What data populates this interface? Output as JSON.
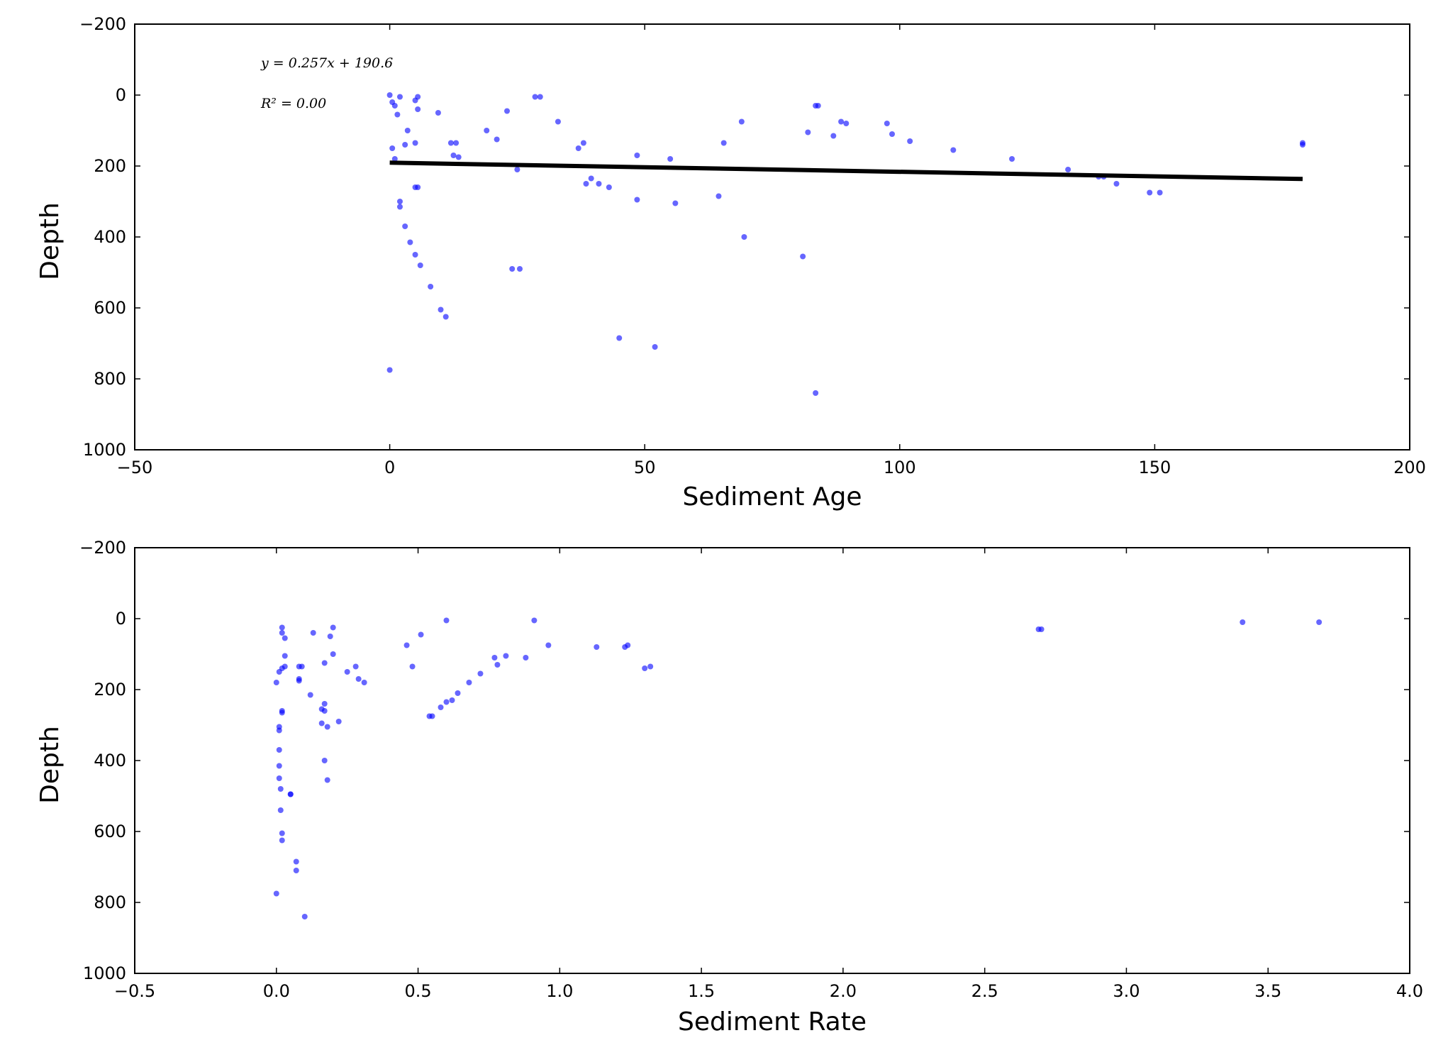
{
  "colors": {
    "point": "#0000ff",
    "point_opacity": 0.6,
    "fit_line": "#000000",
    "axis": "#000000"
  },
  "chart_data": [
    {
      "type": "scatter",
      "xlabel": "Sediment Age",
      "ylabel": "Depth",
      "xlim": [
        -50,
        200
      ],
      "ylim": [
        1000,
        -200
      ],
      "y_inverted": true,
      "x_ticks": [
        "−50",
        "0",
        "50",
        "100",
        "150",
        "200"
      ],
      "y_ticks": [
        "−200",
        "0",
        "200",
        "400",
        "600",
        "800",
        "1000"
      ],
      "annotations": {
        "equation": "y = 0.257x + 190.6",
        "r_squared": "R² = 0.00"
      },
      "fit_line": {
        "slope": 0.257,
        "intercept": 190.6,
        "x_range": [
          0,
          179
        ]
      },
      "points": [
        [
          0,
          0
        ],
        [
          0.5,
          20
        ],
        [
          1,
          30
        ],
        [
          2,
          5
        ],
        [
          1.5,
          55
        ],
        [
          5,
          15
        ],
        [
          5.5,
          5
        ],
        [
          5.5,
          40
        ],
        [
          9.5,
          50
        ],
        [
          0.5,
          150
        ],
        [
          1,
          180
        ],
        [
          3,
          140
        ],
        [
          3.5,
          100
        ],
        [
          5,
          135
        ],
        [
          12,
          135
        ],
        [
          13,
          135
        ],
        [
          12.5,
          170
        ],
        [
          13.5,
          175
        ],
        [
          5,
          260
        ],
        [
          5.5,
          260
        ],
        [
          2,
          300
        ],
        [
          2,
          315
        ],
        [
          3,
          370
        ],
        [
          4,
          415
        ],
        [
          5,
          450
        ],
        [
          6,
          480
        ],
        [
          8,
          540
        ],
        [
          10,
          605
        ],
        [
          11,
          625
        ],
        [
          0,
          775
        ],
        [
          19,
          100
        ],
        [
          21,
          125
        ],
        [
          23,
          45
        ],
        [
          25,
          210
        ],
        [
          24,
          490
        ],
        [
          25.5,
          490
        ],
        [
          28.5,
          5
        ],
        [
          29.5,
          5
        ],
        [
          33,
          75
        ],
        [
          37,
          150
        ],
        [
          38,
          135
        ],
        [
          38.5,
          250
        ],
        [
          39.5,
          235
        ],
        [
          41,
          250
        ],
        [
          43,
          260
        ],
        [
          45,
          685
        ],
        [
          48.5,
          170
        ],
        [
          48.5,
          295
        ],
        [
          55,
          180
        ],
        [
          56,
          305
        ],
        [
          52,
          710
        ],
        [
          64.5,
          285
        ],
        [
          65.5,
          135
        ],
        [
          69,
          75
        ],
        [
          69.5,
          400
        ],
        [
          81,
          455
        ],
        [
          82,
          105
        ],
        [
          83.5,
          30
        ],
        [
          84,
          30
        ],
        [
          83.5,
          840
        ],
        [
          87,
          115
        ],
        [
          88.5,
          75
        ],
        [
          89.5,
          80
        ],
        [
          97.5,
          80
        ],
        [
          98.5,
          110
        ],
        [
          102,
          130
        ],
        [
          110.5,
          155
        ],
        [
          122,
          180
        ],
        [
          133,
          210
        ],
        [
          139,
          230
        ],
        [
          140,
          230
        ],
        [
          142.5,
          250
        ],
        [
          149,
          275
        ],
        [
          151,
          275
        ],
        [
          179,
          135
        ],
        [
          179,
          140
        ]
      ]
    },
    {
      "type": "scatter",
      "xlabel": "Sediment Rate",
      "ylabel": "Depth",
      "xlim": [
        -0.5,
        4.0
      ],
      "ylim": [
        1000,
        -200
      ],
      "y_inverted": true,
      "x_ticks": [
        "−0.5",
        "0.0",
        "0.5",
        "1.0",
        "1.5",
        "2.0",
        "2.5",
        "3.0",
        "3.5",
        "4.0"
      ],
      "y_ticks": [
        "−200",
        "0",
        "200",
        "400",
        "600",
        "800",
        "1000"
      ],
      "points": [
        [
          0.02,
          25
        ],
        [
          0.02,
          40
        ],
        [
          0.03,
          55
        ],
        [
          0.03,
          105
        ],
        [
          0.02,
          140
        ],
        [
          0.01,
          150
        ],
        [
          0,
          180
        ],
        [
          0.03,
          135
        ],
        [
          0.02,
          260
        ],
        [
          0.02,
          265
        ],
        [
          0.01,
          305
        ],
        [
          0.01,
          315
        ],
        [
          0.01,
          370
        ],
        [
          0.01,
          415
        ],
        [
          0.01,
          450
        ],
        [
          0.015,
          480
        ],
        [
          0.015,
          540
        ],
        [
          0.02,
          605
        ],
        [
          0.02,
          625
        ],
        [
          0.05,
          495
        ],
        [
          0.05,
          495
        ],
        [
          0.07,
          685
        ],
        [
          0.07,
          710
        ],
        [
          0,
          775
        ],
        [
          0.1,
          840
        ],
        [
          0.13,
          40
        ],
        [
          0.2,
          25
        ],
        [
          0.19,
          50
        ],
        [
          0.2,
          100
        ],
        [
          0.17,
          125
        ],
        [
          0.08,
          135
        ],
        [
          0.09,
          135
        ],
        [
          0.08,
          170
        ],
        [
          0.08,
          175
        ],
        [
          0.12,
          215
        ],
        [
          0.16,
          255
        ],
        [
          0.17,
          260
        ],
        [
          0.17,
          240
        ],
        [
          0.16,
          295
        ],
        [
          0.18,
          305
        ],
        [
          0.17,
          400
        ],
        [
          0.18,
          455
        ],
        [
          0.22,
          290
        ],
        [
          0.25,
          150
        ],
        [
          0.28,
          135
        ],
        [
          0.29,
          170
        ],
        [
          0.31,
          180
        ],
        [
          0.46,
          75
        ],
        [
          0.48,
          135
        ],
        [
          0.51,
          45
        ],
        [
          0.6,
          5
        ],
        [
          0.54,
          275
        ],
        [
          0.55,
          275
        ],
        [
          0.58,
          250
        ],
        [
          0.6,
          235
        ],
        [
          0.62,
          230
        ],
        [
          0.64,
          210
        ],
        [
          0.68,
          180
        ],
        [
          0.72,
          155
        ],
        [
          0.77,
          110
        ],
        [
          0.78,
          130
        ],
        [
          0.81,
          105
        ],
        [
          0.88,
          110
        ],
        [
          0.91,
          5
        ],
        [
          0.96,
          75
        ],
        [
          1.13,
          80
        ],
        [
          1.23,
          80
        ],
        [
          1.24,
          75
        ],
        [
          1.3,
          140
        ],
        [
          1.32,
          135
        ],
        [
          2.69,
          30
        ],
        [
          2.7,
          30
        ],
        [
          3.41,
          10
        ],
        [
          3.68,
          10
        ]
      ]
    }
  ]
}
